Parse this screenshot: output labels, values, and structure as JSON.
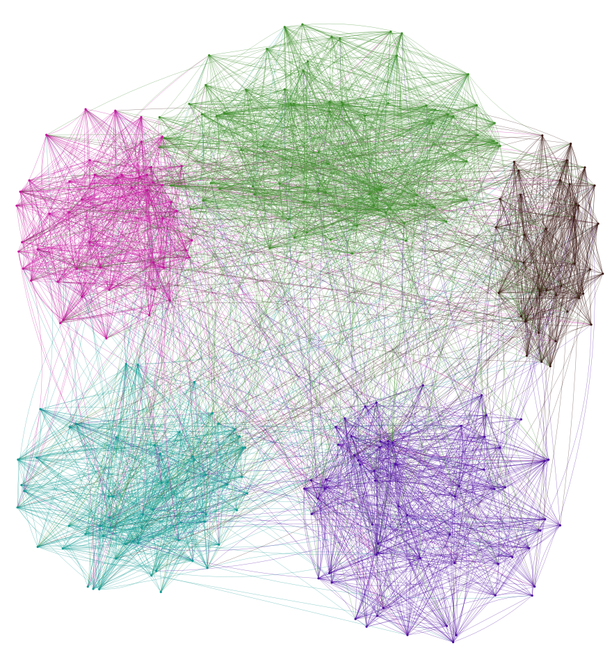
{
  "figure": {
    "type": "network-graph",
    "style": "dense curved-edge network, five colored communities",
    "background": "#ffffff"
  },
  "communities": [
    {
      "id": "green",
      "color": "#3e8c2a"
    },
    {
      "id": "magenta",
      "color": "#c4129c"
    },
    {
      "id": "teal",
      "color": "#139a94"
    },
    {
      "id": "purple",
      "color": "#4c0da0"
    },
    {
      "id": "brown",
      "color": "#3a1a14"
    }
  ]
}
